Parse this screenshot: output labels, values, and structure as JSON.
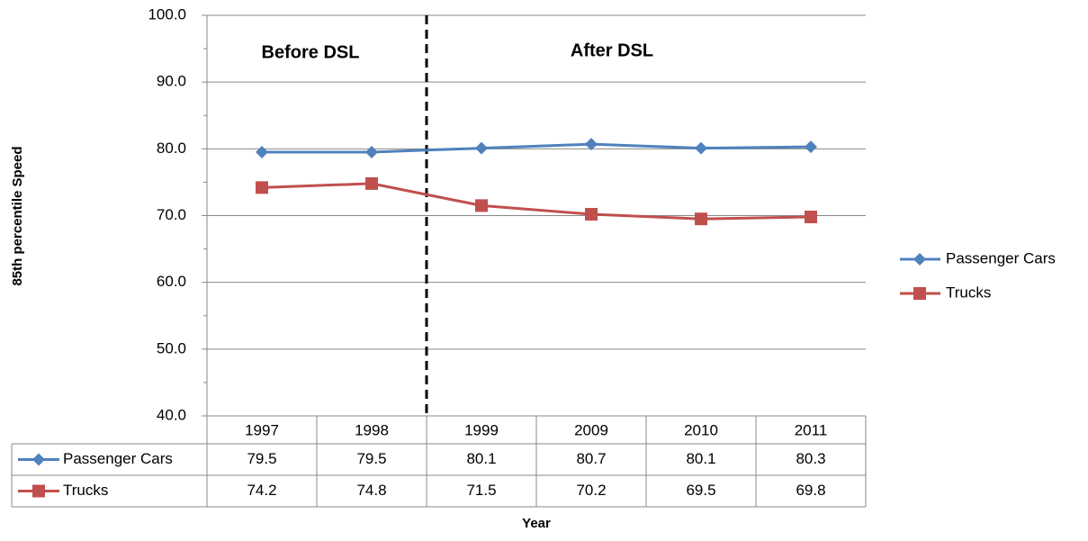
{
  "chart_data": {
    "type": "line",
    "annotations": [
      "Before DSL",
      "After DSL"
    ],
    "x_label": "Year",
    "y_label": "85th percentile Speed",
    "categories": [
      "1997",
      "1998",
      "1999",
      "2009",
      "2010",
      "2011"
    ],
    "series": [
      {
        "name": "Passenger Cars",
        "color": "#4f81bd",
        "marker": "diamond",
        "values": [
          79.5,
          79.5,
          80.1,
          80.7,
          80.1,
          80.3
        ]
      },
      {
        "name": "Trucks",
        "color": "#c0504d",
        "marker": "square",
        "values": [
          74.2,
          74.8,
          71.5,
          70.2,
          69.5,
          69.8
        ]
      }
    ],
    "ylim": [
      40,
      100
    ],
    "yticks": [
      {
        "value": 40,
        "label": "40.0"
      },
      {
        "value": 50,
        "label": "50.0"
      },
      {
        "value": 60,
        "label": "60.0"
      },
      {
        "value": 70,
        "label": "70.0"
      },
      {
        "value": 80,
        "label": "80.0"
      },
      {
        "value": 90,
        "label": "90.0"
      },
      {
        "value": 100,
        "label": "100.0"
      }
    ],
    "minor_yticks": [
      45,
      55,
      65,
      75,
      85,
      95
    ],
    "grid": true,
    "legend": "right",
    "data_table": true
  }
}
